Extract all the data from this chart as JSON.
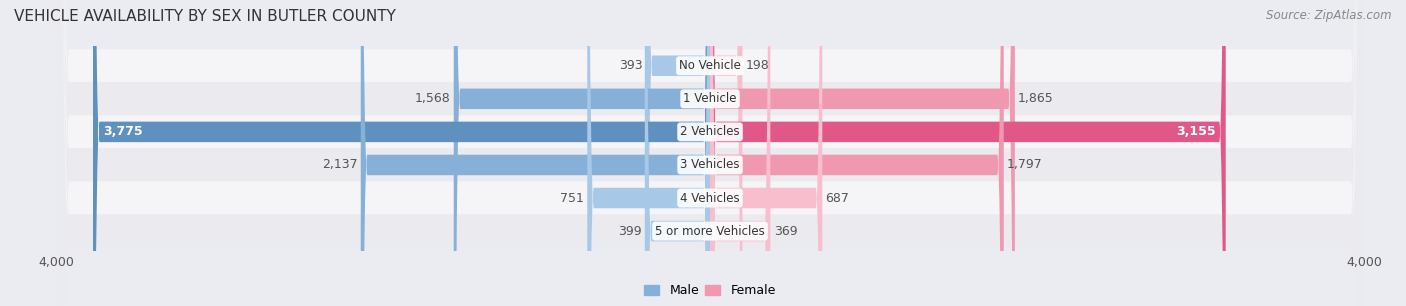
{
  "title": "VEHICLE AVAILABILITY BY SEX IN BUTLER COUNTY",
  "source": "Source: ZipAtlas.com",
  "categories": [
    "No Vehicle",
    "1 Vehicle",
    "2 Vehicles",
    "3 Vehicles",
    "4 Vehicles",
    "5 or more Vehicles"
  ],
  "male_values": [
    393,
    1568,
    3775,
    2137,
    751,
    399
  ],
  "female_values": [
    198,
    1865,
    3155,
    1797,
    687,
    369
  ],
  "male_color": "#87b0d8",
  "female_color": "#f098b0",
  "male_color_light": "#a8c8e8",
  "female_color_light": "#f8bece",
  "male_highlight": "#6090c0",
  "female_highlight": "#e05888",
  "background_color": "#ebebf2",
  "row_bg_color": "#f5f5f8",
  "row_alt_color": "#eaeaef",
  "axis_limit": 4000,
  "title_fontsize": 11,
  "source_fontsize": 8.5,
  "label_fontsize": 9,
  "tick_fontsize": 9,
  "legend_fontsize": 9,
  "category_fontsize": 8.5
}
